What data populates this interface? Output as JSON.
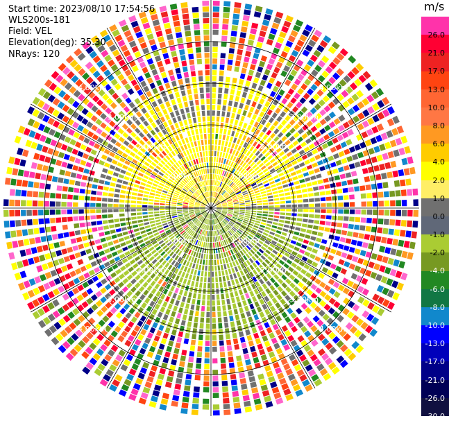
{
  "info": {
    "start_time": "Start time: 2023/08/10 17:54:56",
    "site": "WLS200s-181",
    "field": "Field: VEL",
    "elevation": "Elevation(deg): 35.30",
    "nrays": "NRays: 120"
  },
  "ring_labels": [
    "1.00km",
    "2.00km",
    "3.00km",
    "4.00km"
  ],
  "colorbar": {
    "unit": "m/s",
    "ticks": [
      "26.0",
      "21.0",
      "17.0",
      "13.0",
      "10.0",
      "8.0",
      "6.0",
      "4.0",
      "2.0",
      "1.0",
      "0.0",
      "-1.0",
      "-2.0",
      "-4.0",
      "-6.0",
      "-8.0",
      "-10.0",
      "-13.0",
      "-17.0",
      "-21.0",
      "-26.0",
      "-30.0"
    ],
    "colors": [
      "#ff33aa",
      "#ff0033",
      "#ee2222",
      "#ff4411",
      "#ff6633",
      "#ff7744",
      "#ff9922",
      "#ffcc00",
      "#ffff00",
      "#ffee66",
      "#707070",
      "#606878",
      "#aacc33",
      "#779922",
      "#228822",
      "#117744",
      "#1188cc",
      "#0000ff",
      "#0000bb",
      "#000088",
      "#000055",
      "#101040"
    ]
  },
  "chart_data": {
    "type": "heatmap",
    "title": "",
    "field": "VEL",
    "unit": "m/s",
    "nrays": 120,
    "elevation_deg": 35.3,
    "range_rings_km": [
      1,
      2,
      3,
      4
    ],
    "color_scale_ticks": [
      26.0,
      21.0,
      17.0,
      13.0,
      10.0,
      8.0,
      6.0,
      4.0,
      2.0,
      1.0,
      0.0,
      -1.0,
      -2.0,
      -4.0,
      -6.0,
      -8.0,
      -10.0,
      -13.0,
      -17.0,
      -21.0,
      -26.0,
      -30.0
    ],
    "pattern": {
      "north_half_inner": "positive velocity, ~1 to 6 m/s (yellow/orange)",
      "south_half_inner": "negative velocity, ~-1 to -4 m/s (olive/green)",
      "outer_ranges": "noisy values spanning full scale"
    }
  }
}
